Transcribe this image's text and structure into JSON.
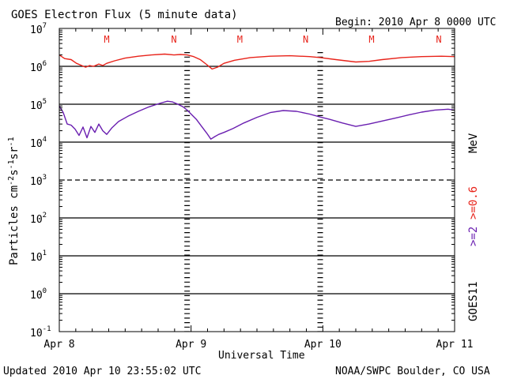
{
  "header": {
    "title": "GOES Electron Flux (5 minute data)",
    "begin": "Begin: 2010 Apr 8 0000 UTC"
  },
  "footer": {
    "updated": "Updated 2010 Apr 10 23:55:02 UTC",
    "credit": "NOAA/SWPC Boulder, CO USA"
  },
  "side": {
    "satellite": "GOES11",
    "energy_hi": ">=2",
    "energy_lo": ">=0.6",
    "unit": "MeV",
    "color_hi": "#6a1fb0",
    "color_lo": "#e8231a"
  },
  "chart_data": {
    "type": "line",
    "title": "GOES Electron Flux (5 minute data)",
    "xlabel": "Universal Time",
    "ylabel": "Particles cm^-2 s^-1 sr^-1",
    "yscale": "log",
    "xlim": [
      0,
      3
    ],
    "ylim_exp": [
      -1,
      7
    ],
    "x_ticks": [
      {
        "x": 0,
        "label": "Apr 8"
      },
      {
        "x": 1,
        "label": "Apr 9"
      },
      {
        "x": 2,
        "label": "Apr 10"
      },
      {
        "x": 3,
        "label": "Apr 11"
      }
    ],
    "y_ticks": [
      {
        "exp": 7,
        "base": "10",
        "sup": "7"
      },
      {
        "exp": 6,
        "base": "10",
        "sup": "6"
      },
      {
        "exp": 5,
        "base": "10",
        "sup": "5"
      },
      {
        "exp": 4,
        "base": "10",
        "sup": "4"
      },
      {
        "exp": 3,
        "base": "10",
        "sup": "3"
      },
      {
        "exp": 2,
        "base": "10",
        "sup": "2"
      },
      {
        "exp": 1,
        "base": "10",
        "sup": "1"
      },
      {
        "exp": 0,
        "base": "10",
        "sup": "0"
      },
      {
        "exp": -1,
        "base": "10",
        "sup": "-1"
      }
    ],
    "threshold_lines": [
      {
        "exp": 6,
        "style": "solid"
      },
      {
        "exp": 5,
        "style": "solid"
      },
      {
        "exp": 4,
        "style": "solid"
      },
      {
        "exp": 3,
        "style": "dashed"
      },
      {
        "exp": 2,
        "style": "solid"
      },
      {
        "exp": 1,
        "style": "solid"
      },
      {
        "exp": 0,
        "style": "solid"
      }
    ],
    "day_boundaries": [
      0.97,
      1.98
    ],
    "markers": [
      {
        "x": 0.36,
        "label": "M"
      },
      {
        "x": 0.87,
        "label": "N"
      },
      {
        "x": 1.37,
        "label": "M"
      },
      {
        "x": 1.87,
        "label": "N"
      },
      {
        "x": 2.37,
        "label": "M"
      },
      {
        "x": 2.88,
        "label": "N"
      }
    ],
    "series": [
      {
        "name": ">=0.6 MeV",
        "color": "#e8231a",
        "x": [
          0.0,
          0.04,
          0.09,
          0.13,
          0.17,
          0.2,
          0.23,
          0.26,
          0.3,
          0.33,
          0.36,
          0.42,
          0.5,
          0.6,
          0.7,
          0.8,
          0.87,
          0.92,
          0.97,
          1.02,
          1.07,
          1.12,
          1.16,
          1.2,
          1.25,
          1.33,
          1.45,
          1.6,
          1.75,
          1.9,
          1.98,
          2.1,
          2.25,
          2.35,
          2.45,
          2.6,
          2.75,
          2.9,
          3.0
        ],
        "y": [
          2000000.0,
          1600000.0,
          1500000.0,
          1200000.0,
          1050000.0,
          950000.0,
          1050000.0,
          1000000.0,
          1150000.0,
          1050000.0,
          1200000.0,
          1400000.0,
          1650000.0,
          1850000.0,
          2000000.0,
          2100000.0,
          2000000.0,
          2050000.0,
          2000000.0,
          1800000.0,
          1500000.0,
          1100000.0,
          850000.0,
          950000.0,
          1200000.0,
          1450000.0,
          1700000.0,
          1850000.0,
          1900000.0,
          1800000.0,
          1700000.0,
          1500000.0,
          1300000.0,
          1350000.0,
          1500000.0,
          1700000.0,
          1800000.0,
          1850000.0,
          1800000.0
        ]
      },
      {
        "name": ">=2 MeV",
        "color": "#6a1fb0",
        "x": [
          0.0,
          0.03,
          0.06,
          0.09,
          0.12,
          0.15,
          0.18,
          0.21,
          0.24,
          0.27,
          0.3,
          0.33,
          0.36,
          0.4,
          0.45,
          0.52,
          0.6,
          0.68,
          0.76,
          0.82,
          0.86,
          0.9,
          0.94,
          0.97,
          1.0,
          1.04,
          1.08,
          1.12,
          1.15,
          1.18,
          1.21,
          1.25,
          1.32,
          1.4,
          1.5,
          1.6,
          1.7,
          1.8,
          1.9,
          1.98,
          2.05,
          2.15,
          2.25,
          2.35,
          2.45,
          2.55,
          2.65,
          2.75,
          2.85,
          2.95,
          3.0
        ],
        "y": [
          90000.0,
          60000.0,
          30000.0,
          28000.0,
          22000.0,
          15000.0,
          25000.0,
          13000.0,
          26000.0,
          18000.0,
          30000.0,
          20000.0,
          16000.0,
          24000.0,
          35000.0,
          48000.0,
          65000.0,
          85000.0,
          105000.0,
          120000.0,
          115000.0,
          100000.0,
          85000.0,
          70000.0,
          55000.0,
          40000.0,
          26000.0,
          17000.0,
          12000.0,
          14000.0,
          16000.0,
          18000.0,
          23000.0,
          32000.0,
          45000.0,
          60000.0,
          68000.0,
          65000.0,
          55000.0,
          46000.0,
          40000.0,
          32000.0,
          26000.0,
          30000.0,
          36000.0,
          43000.0,
          52000.0,
          62000.0,
          70000.0,
          74000.0,
          70000.0
        ]
      }
    ]
  }
}
